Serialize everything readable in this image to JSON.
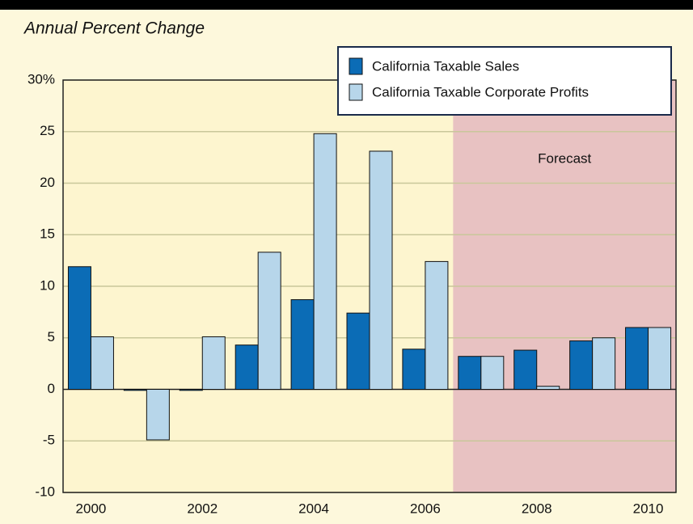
{
  "chart_data": {
    "type": "bar",
    "title": "Annual Percent Change",
    "categories": [
      "2000",
      null,
      "2002",
      null,
      "2004",
      null,
      "2006",
      null,
      "2008",
      null,
      "2010"
    ],
    "series": [
      {
        "name": "California Taxable Sales",
        "color": "#0b6cb6",
        "values": [
          11.9,
          -0.1,
          -0.1,
          4.3,
          8.7,
          7.4,
          3.9,
          3.2,
          3.8,
          4.7,
          6.0
        ]
      },
      {
        "name": "California Taxable Corporate Profits",
        "color": "#b7d6ea",
        "values": [
          5.1,
          -4.9,
          5.1,
          13.3,
          24.8,
          23.1,
          12.4,
          3.2,
          0.3,
          5.0,
          6.0
        ]
      }
    ],
    "ylim": [
      -10,
      30
    ],
    "yticks": [
      -10,
      -5,
      0,
      5,
      10,
      15,
      20,
      25,
      {
        "value": 30,
        "label": "30%"
      }
    ],
    "grid": true,
    "legend": "top-right",
    "forecast": {
      "label": "Forecast",
      "from_category": 7,
      "color": "#e8c2c2"
    }
  }
}
